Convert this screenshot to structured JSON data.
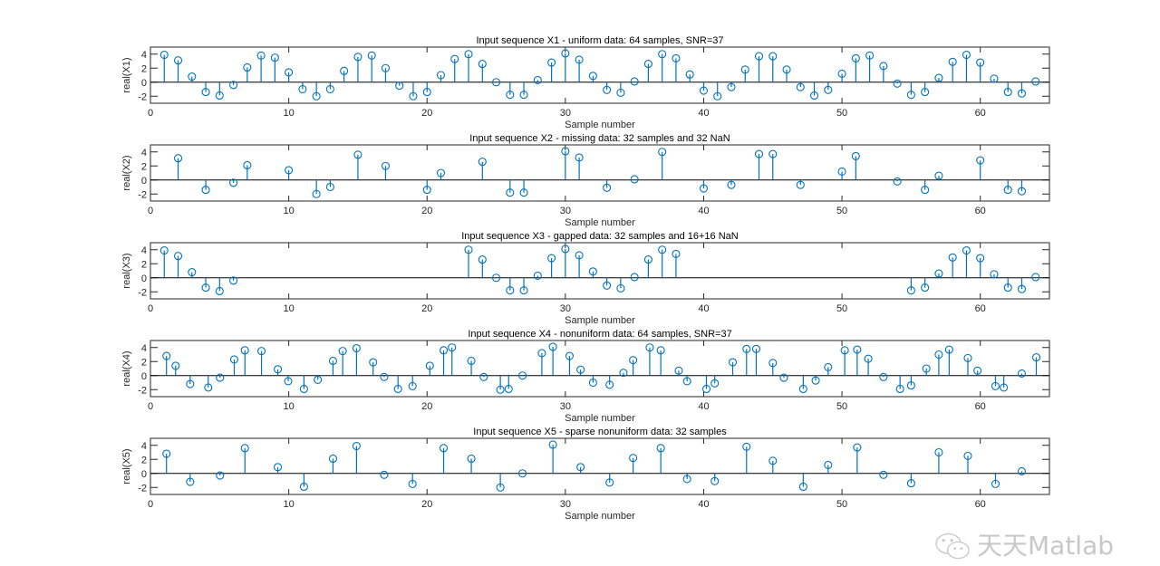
{
  "chart_data": [
    {
      "type": "stem",
      "title": "Input sequence X1 - uniform data: 64 samples, SNR=37",
      "xlabel": "Sample number",
      "ylabel": "real(X1)",
      "xlim": [
        0,
        65
      ],
      "ylim": [
        -3,
        5
      ],
      "xticks": [
        0,
        10,
        20,
        30,
        40,
        50,
        60
      ],
      "yticks": [
        -2,
        0,
        2,
        4
      ],
      "x": [
        1,
        2,
        3,
        4,
        5,
        6,
        7,
        8,
        9,
        10,
        11,
        12,
        13,
        14,
        15,
        16,
        17,
        18,
        19,
        20,
        21,
        22,
        23,
        24,
        25,
        26,
        27,
        28,
        29,
        30,
        31,
        32,
        33,
        34,
        35,
        36,
        37,
        38,
        39,
        40,
        41,
        42,
        43,
        44,
        45,
        46,
        47,
        48,
        49,
        50,
        51,
        52,
        53,
        54,
        55,
        56,
        57,
        58,
        59,
        60,
        61,
        62,
        63,
        64
      ],
      "y": [
        3.9,
        3.1,
        0.8,
        -1.4,
        -1.9,
        -0.4,
        2.1,
        3.8,
        3.5,
        1.4,
        -1.0,
        -2.0,
        -1.0,
        1.6,
        3.6,
        3.8,
        2.0,
        -0.5,
        -2.0,
        -1.4,
        1.0,
        3.3,
        4.0,
        2.6,
        0.0,
        -1.8,
        -1.8,
        0.3,
        2.8,
        4.1,
        3.2,
        0.9,
        -1.1,
        -1.5,
        0.1,
        2.6,
        4.0,
        3.4,
        1.1,
        -1.2,
        -2.0,
        -0.7,
        1.8,
        3.7,
        3.7,
        1.8,
        -0.7,
        -1.9,
        -1.1,
        1.2,
        3.4,
        3.8,
        2.3,
        -0.2,
        -1.8,
        -1.4,
        0.6,
        2.9,
        3.9,
        2.8,
        0.5,
        -1.4,
        -1.6,
        0.1
      ]
    },
    {
      "type": "stem",
      "title": "Input sequence X2 - missing data: 32 samples and 32 NaN",
      "xlabel": "Sample number",
      "ylabel": "real(X2)",
      "xlim": [
        0,
        65
      ],
      "ylim": [
        -3,
        5
      ],
      "xticks": [
        0,
        10,
        20,
        30,
        40,
        50,
        60
      ],
      "yticks": [
        -2,
        0,
        2,
        4
      ],
      "x": [
        2,
        4,
        6,
        7,
        10,
        12,
        13,
        15,
        17,
        20,
        21,
        24,
        26,
        27,
        30,
        31,
        33,
        35,
        37,
        40,
        42,
        44,
        45,
        47,
        50,
        51,
        54,
        56,
        57,
        60,
        62,
        63
      ],
      "y": [
        3.1,
        -1.4,
        -0.4,
        2.1,
        1.4,
        -2.0,
        -1.0,
        3.6,
        2.0,
        -1.4,
        1.0,
        2.6,
        -1.8,
        -1.8,
        4.1,
        3.2,
        -1.1,
        0.1,
        4.0,
        -1.2,
        -0.7,
        3.7,
        3.7,
        -0.7,
        1.2,
        3.4,
        -0.2,
        -1.4,
        0.6,
        2.8,
        -1.4,
        -1.6
      ]
    },
    {
      "type": "stem",
      "title": "Input sequence X3 - gapped data: 32 samples and 16+16  NaN",
      "xlabel": "Sample number",
      "ylabel": "real(X3)",
      "xlim": [
        0,
        65
      ],
      "ylim": [
        -3,
        5
      ],
      "xticks": [
        0,
        10,
        20,
        30,
        40,
        50,
        60
      ],
      "yticks": [
        -2,
        0,
        2,
        4
      ],
      "x": [
        1,
        2,
        3,
        4,
        5,
        6,
        23,
        24,
        25,
        26,
        27,
        28,
        29,
        30,
        31,
        32,
        33,
        34,
        35,
        36,
        37,
        38,
        55,
        56,
        57,
        58,
        59,
        60,
        61,
        62,
        63,
        64
      ],
      "y": [
        3.9,
        3.1,
        0.8,
        -1.4,
        -1.9,
        -0.4,
        4.0,
        2.6,
        0.0,
        -1.8,
        -1.8,
        0.3,
        2.8,
        4.1,
        3.2,
        0.9,
        -1.1,
        -1.5,
        0.1,
        2.6,
        4.0,
        3.4,
        -1.8,
        -1.4,
        0.6,
        2.9,
        3.9,
        2.8,
        0.5,
        -1.4,
        -1.6,
        0.1
      ]
    },
    {
      "type": "stem",
      "title": "Input sequence X4 - nonuniform data: 64 samples, SNR=37",
      "xlabel": "Sample number",
      "ylabel": "real(X4)",
      "xlim": [
        0,
        65
      ],
      "ylim": [
        -3,
        5
      ],
      "xticks": [
        0,
        10,
        20,
        30,
        40,
        50,
        60
      ],
      "yticks": [
        -2,
        0,
        2,
        4
      ],
      "x": [
        1.16,
        1.82,
        2.87,
        4.18,
        5.03,
        6.06,
        6.83,
        8.03,
        9.21,
        9.96,
        11.1,
        12.1,
        13.2,
        13.9,
        14.9,
        16.1,
        16.9,
        17.9,
        18.95,
        20.2,
        21.2,
        21.8,
        23.2,
        24.1,
        25.3,
        25.9,
        26.9,
        28.3,
        29.1,
        30.3,
        31.1,
        32.0,
        33.2,
        34.2,
        34.9,
        36.1,
        36.9,
        38.2,
        38.8,
        40.2,
        40.8,
        42.1,
        43.1,
        43.8,
        45.0,
        45.8,
        47.2,
        48.1,
        49.0,
        50.2,
        51.1,
        51.9,
        53.0,
        54.2,
        55.0,
        56.1,
        57.0,
        57.75,
        59.1,
        59.8,
        61.1,
        61.7,
        63.0,
        64.05
      ],
      "y": [
        2.8,
        1.4,
        -1.2,
        -1.7,
        -0.3,
        2.3,
        3.6,
        3.5,
        0.9,
        -0.8,
        -1.9,
        -0.6,
        2.1,
        3.5,
        3.9,
        1.9,
        -0.2,
        -1.9,
        -1.5,
        1.4,
        3.6,
        4.0,
        2.1,
        -0.2,
        -2.0,
        -1.9,
        0.0,
        3.2,
        4.1,
        2.8,
        0.85,
        -1.0,
        -1.3,
        0.4,
        2.2,
        4.0,
        3.6,
        0.7,
        -0.8,
        -1.9,
        -1.1,
        1.9,
        3.8,
        3.8,
        1.8,
        -0.3,
        -1.9,
        -0.7,
        1.2,
        3.6,
        3.7,
        2.4,
        -0.2,
        -1.9,
        -1.4,
        1.0,
        3.0,
        3.7,
        2.5,
        0.7,
        -1.5,
        -1.7,
        0.3,
        2.6
      ]
    },
    {
      "type": "stem",
      "title": "Input sequence X5 - sparse nonuniform data: 32 samples",
      "xlabel": "Sample number",
      "ylabel": "real(X5)",
      "xlim": [
        0,
        65
      ],
      "ylim": [
        -3,
        5
      ],
      "xticks": [
        0,
        10,
        20,
        30,
        40,
        50,
        60
      ],
      "yticks": [
        -2,
        0,
        2,
        4
      ],
      "x": [
        1.16,
        2.87,
        5.03,
        6.83,
        9.21,
        11.1,
        13.2,
        14.9,
        16.9,
        18.95,
        21.2,
        23.2,
        25.3,
        26.9,
        29.1,
        31.1,
        33.2,
        34.9,
        36.9,
        38.8,
        40.8,
        43.1,
        45.0,
        47.2,
        49.0,
        51.1,
        53.0,
        55.0,
        57.0,
        59.1,
        61.1,
        63.0
      ],
      "y": [
        2.8,
        -1.2,
        -0.3,
        3.6,
        0.9,
        -1.9,
        2.1,
        3.9,
        -0.2,
        -1.5,
        3.6,
        2.1,
        -2.0,
        0.0,
        4.1,
        0.9,
        -1.3,
        2.2,
        3.6,
        -0.8,
        -1.1,
        3.8,
        1.8,
        -1.9,
        1.2,
        3.7,
        -0.2,
        -1.4,
        3.0,
        2.5,
        -1.5,
        0.3
      ]
    }
  ],
  "style": {
    "stem_color": "#0072BD",
    "axis_color": "#262626",
    "grid": false,
    "marker": "open-circle"
  },
  "watermark": {
    "text": "天天Matlab",
    "icon": "wechat-icon"
  }
}
